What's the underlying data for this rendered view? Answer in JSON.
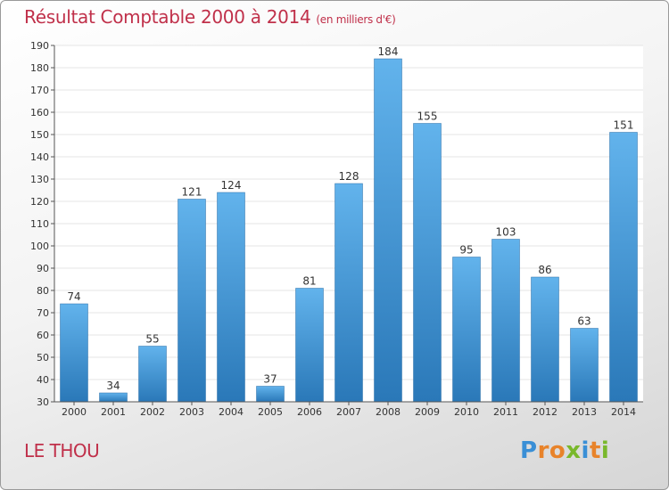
{
  "header": {
    "title": "Résultat Comptable 2000 à 2014",
    "subtitle": "(en milliers d'€)"
  },
  "footer": {
    "city": "LE THOU",
    "logo_letters": [
      "P",
      "r",
      "o",
      "x",
      "i",
      "t",
      "i"
    ]
  },
  "colors": {
    "bar_top": "#62b3ec",
    "bar_bottom": "#2a78b8",
    "title": "#c0304a",
    "grid": "#e4e4e4"
  },
  "chart_data": {
    "type": "bar",
    "title": "Résultat Comptable 2000 à 2014",
    "subtitle": "(en milliers d'€)",
    "xlabel": "",
    "ylabel": "",
    "categories": [
      "2000",
      "2001",
      "2002",
      "2003",
      "2004",
      "2005",
      "2006",
      "2007",
      "2008",
      "2009",
      "2010",
      "2011",
      "2012",
      "2013",
      "2014"
    ],
    "values": [
      74,
      34,
      55,
      121,
      124,
      37,
      81,
      128,
      184,
      155,
      95,
      103,
      86,
      63,
      151
    ],
    "ylim": [
      30,
      190
    ],
    "yticks": [
      30,
      40,
      50,
      60,
      70,
      80,
      90,
      100,
      110,
      120,
      130,
      140,
      150,
      160,
      170,
      180,
      190
    ],
    "grid": true,
    "data_labels": true
  }
}
